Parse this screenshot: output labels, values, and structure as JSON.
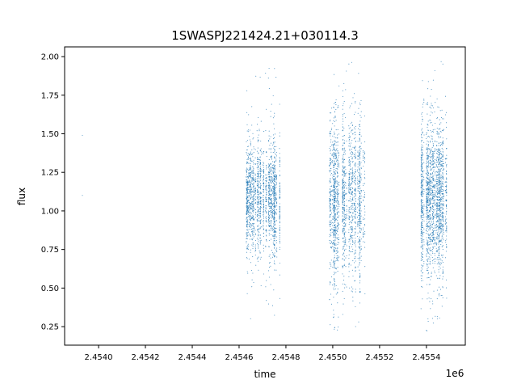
{
  "chart_data": {
    "type": "scatter",
    "title": "1SWASPJ221424.21+030114.3",
    "xlabel": "time",
    "ylabel": "flux",
    "x_offset_label": "1e6",
    "xlim": [
      2453855,
      2455566
    ],
    "ylim": [
      0.13,
      2.063
    ],
    "xticks": [
      2454000,
      2454200,
      2454400,
      2454600,
      2454800,
      2455000,
      2455200,
      2455400
    ],
    "xtick_labels": [
      "2.4540",
      "2.4542",
      "2.4544",
      "2.4546",
      "2.4548",
      "2.4550",
      "2.4552",
      "2.4554"
    ],
    "yticks": [
      0.25,
      0.5,
      0.75,
      1.0,
      1.25,
      1.5,
      1.75,
      2.0
    ],
    "ytick_labels": [
      "0.25",
      "0.50",
      "0.75",
      "1.00",
      "1.25",
      "1.50",
      "1.75",
      "2.00"
    ],
    "grid": false,
    "color": "#1f77b4",
    "isolated_points": [
      {
        "x": 2453931,
        "y": 1.49
      },
      {
        "x": 2453931,
        "y": 1.1
      }
    ],
    "observing_seasons": [
      {
        "time_range": [
          2454631,
          2454776
        ],
        "flux_median": 1.08,
        "flux_core_range": [
          0.75,
          1.45
        ],
        "flux_extreme_range": [
          0.25,
          1.93
        ]
      },
      {
        "time_range": [
          2454986,
          2455138
        ],
        "flux_median": 1.08,
        "flux_core_range": [
          0.6,
          1.6
        ],
        "flux_extreme_range": [
          0.21,
          1.97
        ]
      },
      {
        "time_range": [
          2455376,
          2455486
        ],
        "flux_median": 1.08,
        "flux_core_range": [
          0.6,
          1.55
        ],
        "flux_extreme_range": [
          0.21,
          1.97
        ]
      }
    ]
  }
}
